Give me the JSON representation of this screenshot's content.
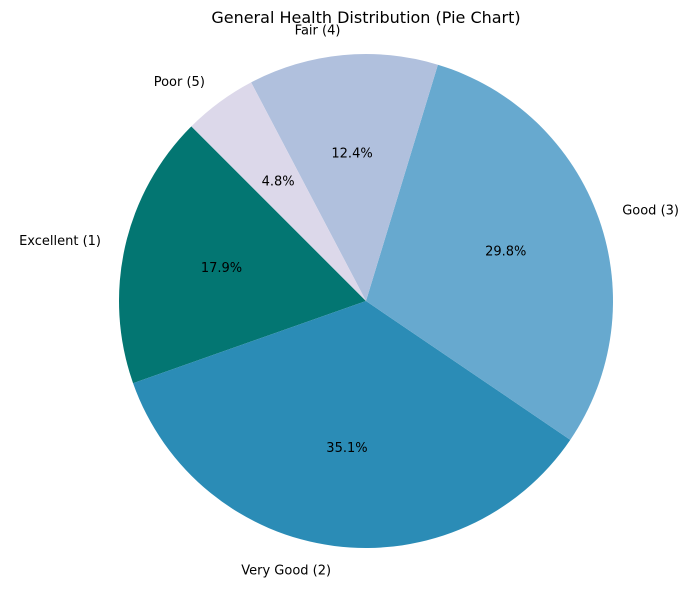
{
  "chart_data": {
    "type": "pie",
    "title": "General Health Distribution (Pie Chart)",
    "start_angle_deg": 135,
    "direction": "counterclockwise",
    "slices": [
      {
        "label": "Excellent (1)",
        "value": 17.9,
        "pct_label": "17.9%",
        "color": "#037672"
      },
      {
        "label": "Very Good (2)",
        "value": 35.1,
        "pct_label": "35.1%",
        "color": "#2b8cb6"
      },
      {
        "label": "Good (3)",
        "value": 29.8,
        "pct_label": "29.8%",
        "color": "#67a9cf"
      },
      {
        "label": "Fair (4)",
        "value": 12.4,
        "pct_label": "12.4%",
        "color": "#b0c0dd"
      },
      {
        "label": "Poor (5)",
        "value": 4.8,
        "pct_label": "4.8%",
        "color": "#dcd8ea"
      }
    ]
  }
}
